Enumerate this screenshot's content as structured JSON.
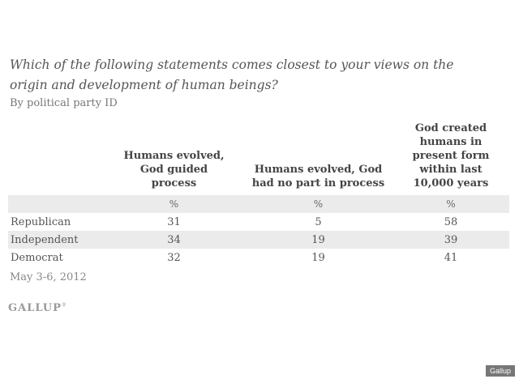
{
  "chart_data": {
    "type": "table",
    "title": "Which of the following statements comes closest to your views on the origin and development of human beings?",
    "subtitle": "By political party ID",
    "columns": [
      "Humans evolved, God guided process",
      "Humans evolved, God had no part in process",
      "God created humans in present form within last 10,000 years"
    ],
    "units": "%",
    "rows": [
      {
        "label": "Republican",
        "values": [
          "31",
          "5",
          "58"
        ]
      },
      {
        "label": "Independent",
        "values": [
          "34",
          "19",
          "39"
        ]
      },
      {
        "label": "Democrat",
        "values": [
          "32",
          "19",
          "41"
        ]
      }
    ],
    "note": "May 3-6, 2012",
    "source": "GALLUP"
  },
  "logo_mark": "®",
  "credit": "Gallup"
}
